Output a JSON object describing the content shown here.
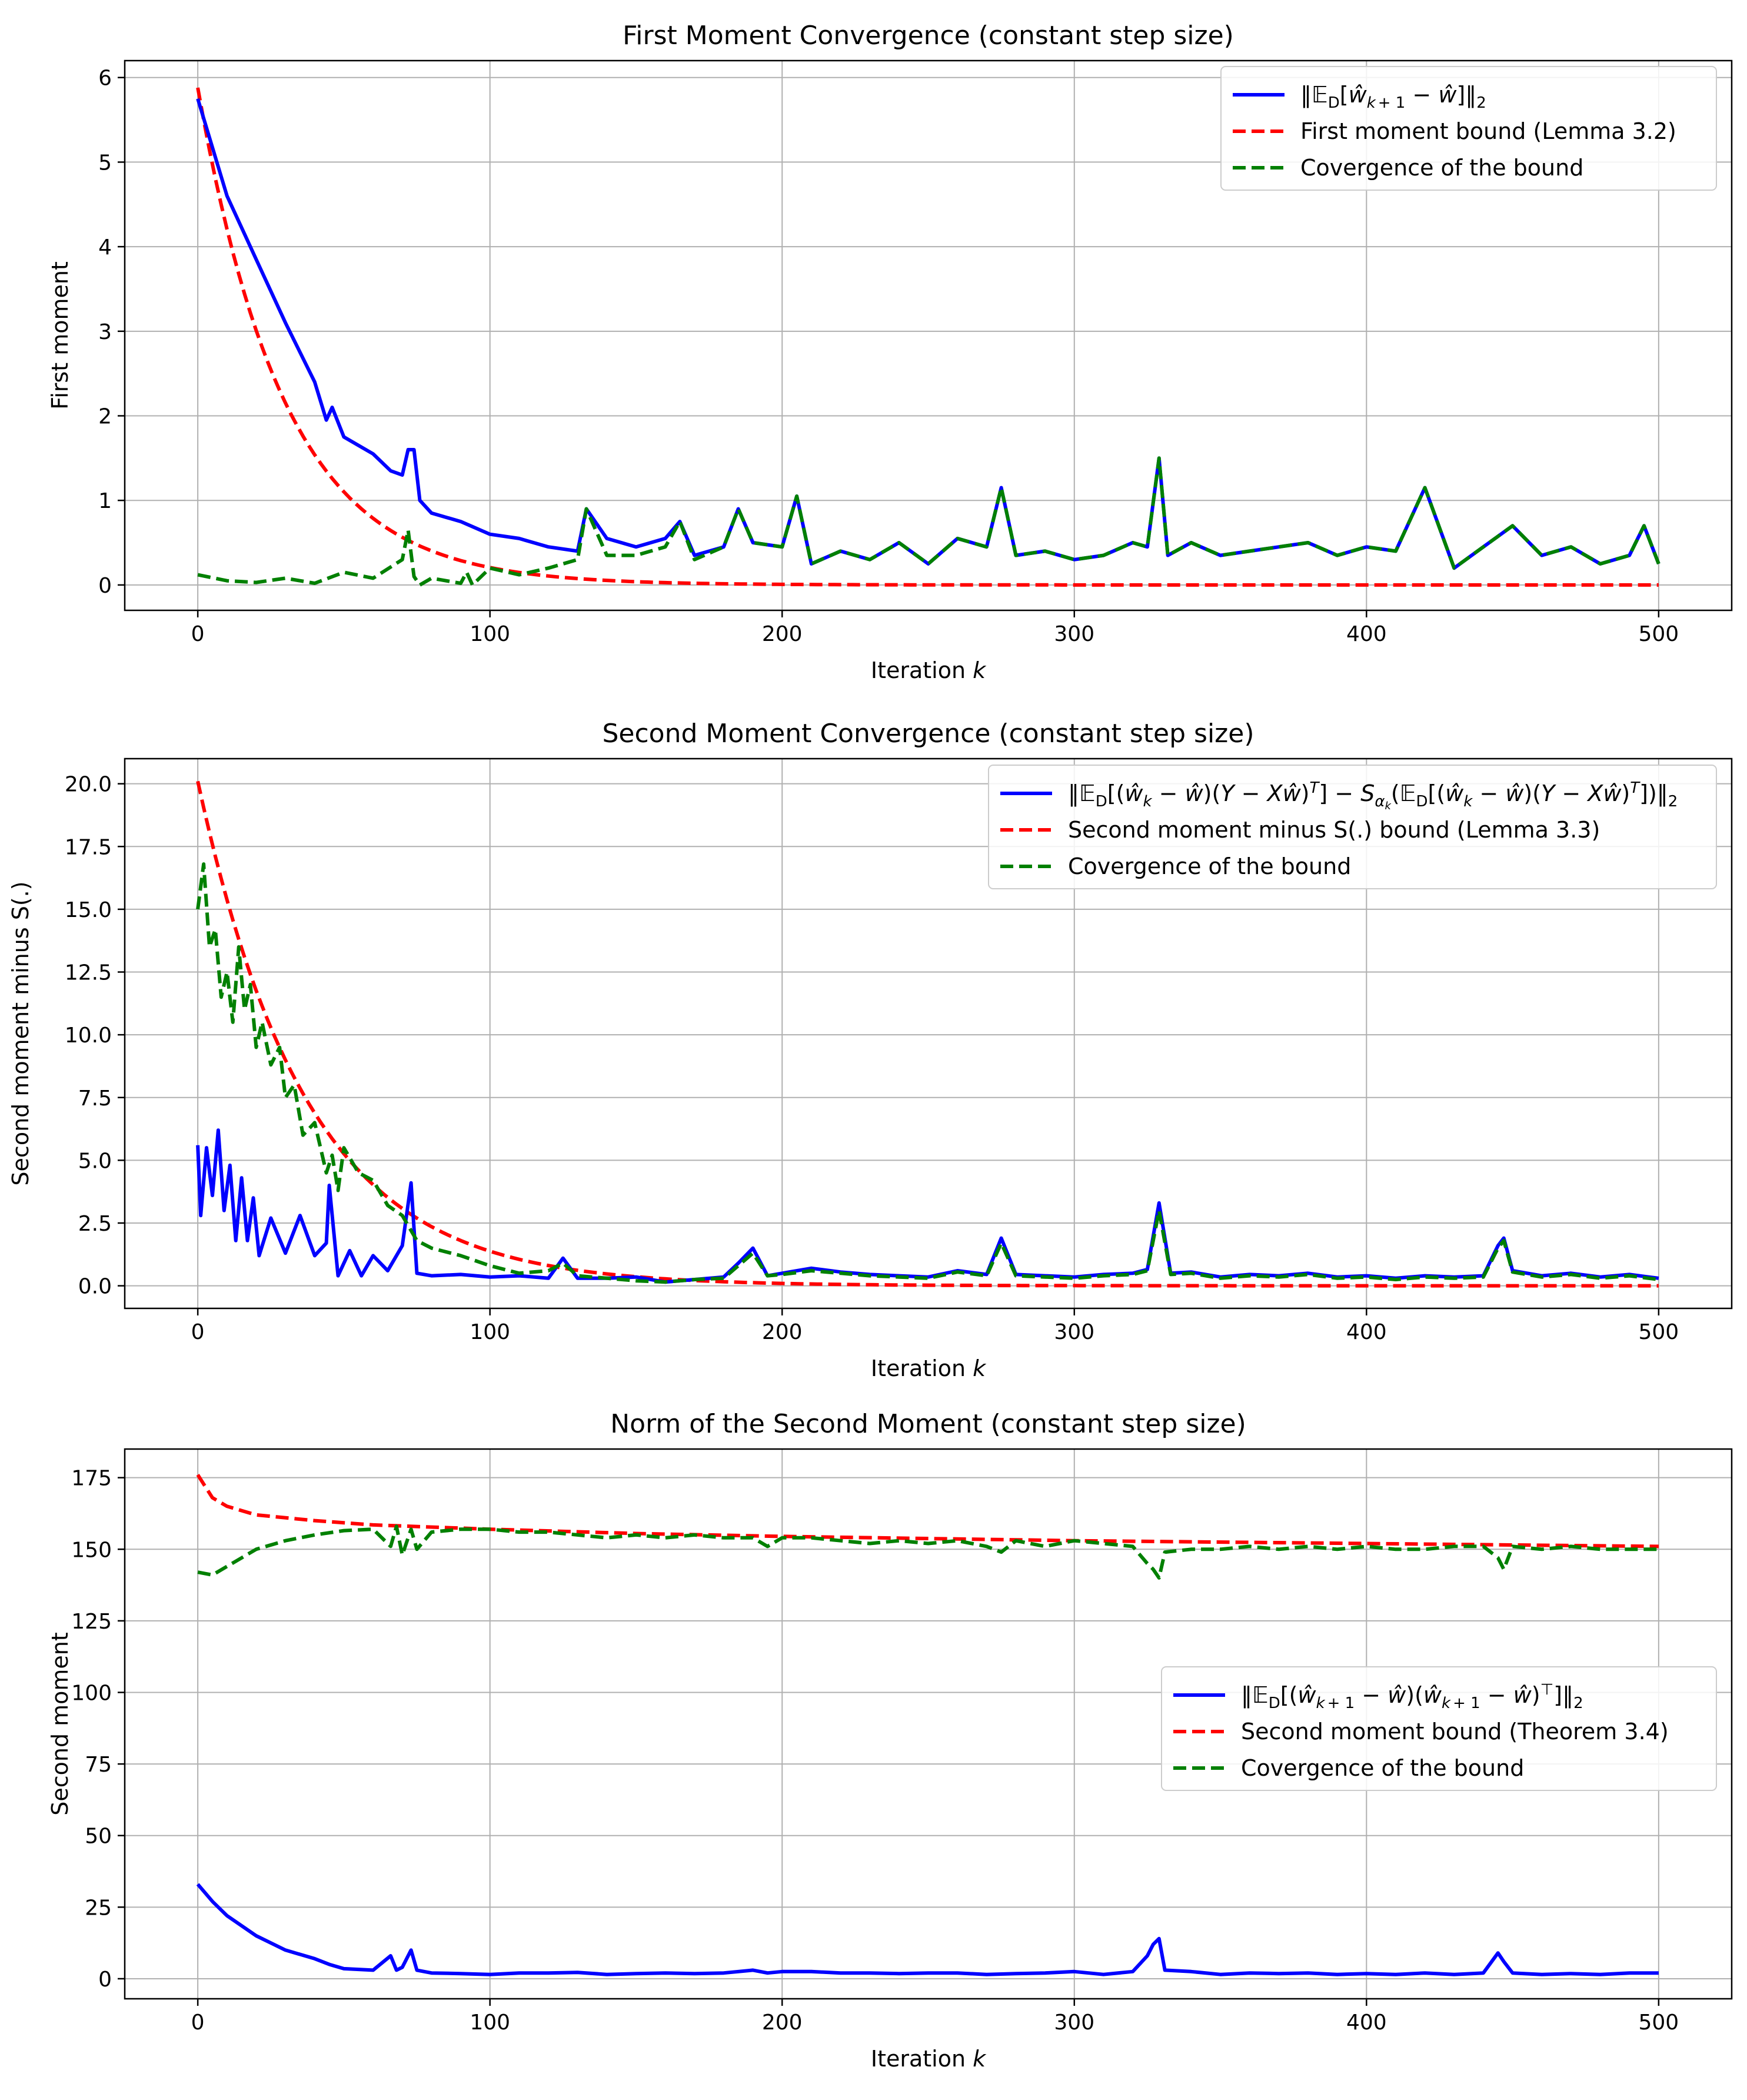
{
  "chart_data": [
    {
      "type": "line",
      "title": "First Moment Convergence (constant step size)",
      "xlabel": "Iteration k",
      "ylabel": "First moment",
      "xlim": [
        -25,
        525
      ],
      "ylim": [
        -0.3,
        6.2
      ],
      "xticks": [
        0,
        100,
        200,
        300,
        400,
        500
      ],
      "xtick_labels": [
        "0",
        "100",
        "200",
        "300",
        "400",
        "500"
      ],
      "yticks": [
        0,
        1,
        2,
        3,
        4,
        5,
        6
      ],
      "ytick_labels": [
        "0",
        "1",
        "2",
        "3",
        "4",
        "5",
        "6"
      ],
      "grid": true,
      "legend_position": "top-right",
      "series": [
        {
          "name": "‖𝔼D[ŵk+1 − ŵ]‖2",
          "color": "#0000ff",
          "style": "solid",
          "x": [
            0,
            10,
            20,
            30,
            40,
            44,
            46,
            50,
            60,
            66,
            70,
            72,
            74,
            76,
            80,
            90,
            100,
            110,
            120,
            130,
            133,
            140,
            150,
            160,
            165,
            170,
            180,
            185,
            190,
            200,
            205,
            210,
            220,
            230,
            240,
            250,
            260,
            270,
            275,
            280,
            290,
            300,
            310,
            320,
            325,
            329,
            332,
            340,
            350,
            360,
            370,
            380,
            390,
            400,
            410,
            420,
            430,
            440,
            450,
            460,
            470,
            480,
            490,
            495,
            500
          ],
          "values": [
            5.75,
            4.6,
            3.85,
            3.1,
            2.4,
            1.95,
            2.1,
            1.75,
            1.55,
            1.35,
            1.3,
            1.6,
            1.6,
            1.0,
            0.85,
            0.75,
            0.6,
            0.55,
            0.45,
            0.4,
            0.9,
            0.55,
            0.45,
            0.55,
            0.75,
            0.35,
            0.45,
            0.9,
            0.5,
            0.45,
            1.05,
            0.25,
            0.4,
            0.3,
            0.5,
            0.25,
            0.55,
            0.45,
            1.15,
            0.35,
            0.4,
            0.3,
            0.35,
            0.5,
            0.45,
            1.5,
            0.35,
            0.5,
            0.35,
            0.4,
            0.45,
            0.5,
            0.35,
            0.45,
            0.4,
            1.15,
            0.2,
            0.45,
            0.7,
            0.35,
            0.45,
            0.25,
            0.35,
            0.7,
            0.25
          ]
        },
        {
          "name": "First moment bound (Lemma 3.2)",
          "color": "#ff0000",
          "style": "dashed",
          "decay": {
            "y0": 5.88,
            "rate": 0.0335,
            "floor": 0.0
          }
        },
        {
          "name": "Covergence of the bound",
          "color": "#008000",
          "style": "dashed",
          "x": [
            0,
            10,
            20,
            30,
            40,
            50,
            60,
            70,
            72,
            74,
            76,
            80,
            90,
            92,
            94,
            100,
            110,
            120,
            130,
            133,
            140,
            150,
            160,
            165,
            170,
            180,
            185,
            190,
            200,
            205,
            210,
            220,
            230,
            240,
            250,
            260,
            270,
            275,
            280,
            290,
            300,
            310,
            320,
            325,
            329,
            332,
            340,
            350,
            360,
            370,
            380,
            390,
            400,
            410,
            420,
            430,
            440,
            450,
            460,
            470,
            480,
            490,
            495,
            500
          ],
          "values": [
            0.12,
            0.05,
            0.03,
            0.08,
            0.02,
            0.15,
            0.08,
            0.3,
            0.65,
            0.1,
            0.0,
            0.08,
            0.02,
            0.15,
            0.0,
            0.2,
            0.12,
            0.2,
            0.3,
            0.9,
            0.35,
            0.35,
            0.45,
            0.75,
            0.3,
            0.45,
            0.9,
            0.5,
            0.45,
            1.05,
            0.25,
            0.4,
            0.3,
            0.5,
            0.25,
            0.55,
            0.45,
            1.15,
            0.35,
            0.4,
            0.3,
            0.35,
            0.5,
            0.45,
            1.5,
            0.35,
            0.5,
            0.35,
            0.4,
            0.45,
            0.5,
            0.35,
            0.45,
            0.4,
            1.15,
            0.2,
            0.45,
            0.7,
            0.35,
            0.45,
            0.25,
            0.35,
            0.7,
            0.25
          ]
        }
      ]
    },
    {
      "type": "line",
      "title": "Second Moment Convergence (constant step size)",
      "xlabel": "Iteration k",
      "ylabel": "Second moment minus S(.)",
      "xlim": [
        -25,
        525
      ],
      "ylim": [
        -0.9,
        21.0
      ],
      "xticks": [
        0,
        100,
        200,
        300,
        400,
        500
      ],
      "xtick_labels": [
        "0",
        "100",
        "200",
        "300",
        "400",
        "500"
      ],
      "yticks": [
        0,
        2.5,
        5,
        7.5,
        10,
        12.5,
        15,
        17.5,
        20
      ],
      "ytick_labels": [
        "0.0",
        "2.5",
        "5.0",
        "7.5",
        "10.0",
        "12.5",
        "15.0",
        "17.5",
        "20.0"
      ],
      "grid": true,
      "legend_position": "top-right",
      "series": [
        {
          "name": "‖𝔼D[(ŵk − ŵ)(Y − Xŵ)T] − Sαk(𝔼D[(ŵk − ŵ)(Y − Xŵ)T])‖2",
          "color": "#0000ff",
          "style": "solid",
          "x": [
            0,
            1,
            3,
            5,
            7,
            9,
            11,
            13,
            15,
            17,
            19,
            21,
            25,
            30,
            35,
            40,
            44,
            45,
            48,
            52,
            56,
            60,
            65,
            70,
            73,
            75,
            80,
            90,
            100,
            110,
            120,
            125,
            130,
            140,
            150,
            160,
            170,
            180,
            185,
            190,
            195,
            200,
            210,
            220,
            230,
            240,
            250,
            260,
            270,
            275,
            280,
            290,
            300,
            310,
            320,
            325,
            329,
            333,
            340,
            350,
            360,
            370,
            380,
            390,
            400,
            410,
            420,
            430,
            440,
            445,
            447,
            450,
            460,
            470,
            480,
            490,
            500
          ],
          "values": [
            5.6,
            2.8,
            5.5,
            3.6,
            6.2,
            3.0,
            4.8,
            1.8,
            4.3,
            1.8,
            3.5,
            1.2,
            2.7,
            1.3,
            2.8,
            1.2,
            1.7,
            4.0,
            0.4,
            1.4,
            0.4,
            1.2,
            0.6,
            1.6,
            4.1,
            0.5,
            0.4,
            0.45,
            0.35,
            0.4,
            0.3,
            1.1,
            0.3,
            0.3,
            0.35,
            0.15,
            0.25,
            0.35,
            0.9,
            1.5,
            0.4,
            0.5,
            0.7,
            0.55,
            0.45,
            0.4,
            0.35,
            0.6,
            0.45,
            1.9,
            0.45,
            0.4,
            0.35,
            0.45,
            0.5,
            0.65,
            3.3,
            0.5,
            0.55,
            0.35,
            0.45,
            0.4,
            0.5,
            0.35,
            0.4,
            0.3,
            0.4,
            0.35,
            0.4,
            1.6,
            1.9,
            0.6,
            0.4,
            0.5,
            0.35,
            0.45,
            0.3
          ]
        },
        {
          "name": "Second moment minus S(.) bound (Lemma 3.3)",
          "color": "#ff0000",
          "style": "dashed",
          "decay": {
            "y0": 20.1,
            "rate": 0.0268,
            "floor": 0.0
          }
        },
        {
          "name": "Covergence of the bound",
          "color": "#008000",
          "style": "dashed",
          "x": [
            0,
            2,
            4,
            6,
            8,
            10,
            12,
            14,
            16,
            18,
            20,
            22,
            25,
            28,
            30,
            33,
            36,
            40,
            44,
            46,
            48,
            50,
            55,
            60,
            65,
            70,
            75,
            80,
            90,
            100,
            110,
            120,
            125,
            130,
            140,
            150,
            160,
            170,
            180,
            185,
            190,
            195,
            200,
            210,
            220,
            230,
            240,
            250,
            260,
            270,
            275,
            280,
            290,
            300,
            310,
            320,
            325,
            329,
            333,
            340,
            350,
            360,
            370,
            380,
            390,
            400,
            410,
            420,
            430,
            440,
            445,
            447,
            450,
            460,
            470,
            480,
            490,
            500
          ],
          "values": [
            15.0,
            16.8,
            13.5,
            14.2,
            11.5,
            12.5,
            10.5,
            13.5,
            11.0,
            12.0,
            9.5,
            10.5,
            8.8,
            9.5,
            7.5,
            8.0,
            6.0,
            6.5,
            4.5,
            5.2,
            3.8,
            5.5,
            4.5,
            4.2,
            3.2,
            2.8,
            1.8,
            1.5,
            1.2,
            0.8,
            0.5,
            0.6,
            0.9,
            0.4,
            0.3,
            0.2,
            0.15,
            0.25,
            0.3,
            0.8,
            1.3,
            0.4,
            0.45,
            0.6,
            0.5,
            0.4,
            0.35,
            0.3,
            0.55,
            0.4,
            1.7,
            0.4,
            0.35,
            0.3,
            0.4,
            0.45,
            0.6,
            3.0,
            0.45,
            0.5,
            0.3,
            0.4,
            0.35,
            0.45,
            0.3,
            0.35,
            0.25,
            0.35,
            0.3,
            0.35,
            1.5,
            1.8,
            0.55,
            0.35,
            0.45,
            0.3,
            0.4,
            0.25
          ]
        }
      ]
    },
    {
      "type": "line",
      "title": "Norm of the Second Moment (constant step size)",
      "xlabel": "Iteration k",
      "ylabel": "Second moment",
      "xlim": [
        -25,
        525
      ],
      "ylim": [
        -7,
        185
      ],
      "xticks": [
        0,
        100,
        200,
        300,
        400,
        500
      ],
      "xtick_labels": [
        "0",
        "100",
        "200",
        "300",
        "400",
        "500"
      ],
      "yticks": [
        0,
        25,
        50,
        75,
        100,
        125,
        150,
        175
      ],
      "ytick_labels": [
        "0",
        "25",
        "50",
        "75",
        "100",
        "125",
        "150",
        "175"
      ],
      "grid": true,
      "legend_position": "center-right",
      "series": [
        {
          "name": "‖𝔼D[(ŵk+1 − ŵ)(ŵk+1 − ŵ)⊤]‖2",
          "color": "#0000ff",
          "style": "solid",
          "x": [
            0,
            5,
            10,
            20,
            30,
            40,
            45,
            50,
            60,
            66,
            68,
            70,
            73,
            75,
            80,
            90,
            100,
            110,
            120,
            130,
            140,
            150,
            160,
            170,
            180,
            190,
            195,
            200,
            210,
            220,
            230,
            240,
            250,
            260,
            270,
            280,
            290,
            300,
            310,
            320,
            325,
            327,
            329,
            331,
            340,
            350,
            360,
            370,
            380,
            390,
            400,
            410,
            420,
            430,
            440,
            445,
            447,
            450,
            460,
            470,
            480,
            490,
            500
          ],
          "values": [
            33,
            27,
            22,
            15,
            10,
            7,
            5,
            3.5,
            3,
            8,
            3,
            4,
            10,
            3,
            2,
            1.8,
            1.5,
            2,
            2,
            2.2,
            1.5,
            1.8,
            2,
            1.8,
            2,
            3,
            2,
            2.5,
            2.5,
            2,
            2,
            1.8,
            2,
            2,
            1.5,
            1.8,
            2,
            2.5,
            1.5,
            2.5,
            8,
            12,
            14,
            3,
            2.5,
            1.5,
            2,
            1.8,
            2,
            1.5,
            1.8,
            1.5,
            2,
            1.5,
            2,
            9,
            6,
            2,
            1.5,
            1.8,
            1.5,
            2,
            2
          ]
        },
        {
          "name": "Second moment bound (Theorem 3.4)",
          "color": "#ff0000",
          "style": "dashed",
          "x": [
            0,
            5,
            10,
            20,
            40,
            60,
            100,
            150,
            200,
            300,
            400,
            500
          ],
          "values": [
            176,
            168,
            165,
            162,
            160,
            158.5,
            157,
            155.5,
            154.5,
            153,
            152,
            151
          ]
        },
        {
          "name": "Covergence of the bound",
          "color": "#008000",
          "style": "dashed",
          "x": [
            0,
            5,
            10,
            20,
            30,
            40,
            50,
            60,
            66,
            68,
            70,
            73,
            75,
            80,
            90,
            100,
            110,
            120,
            130,
            140,
            150,
            160,
            170,
            180,
            190,
            195,
            200,
            210,
            220,
            230,
            240,
            250,
            260,
            270,
            275,
            280,
            290,
            300,
            310,
            320,
            325,
            327,
            329,
            331,
            340,
            350,
            360,
            370,
            380,
            390,
            400,
            410,
            420,
            430,
            440,
            445,
            447,
            450,
            460,
            470,
            480,
            490,
            500
          ],
          "values": [
            142,
            141,
            144,
            150,
            153,
            155,
            156.5,
            157,
            151,
            158,
            148,
            157,
            150,
            156,
            157,
            157,
            156,
            156,
            155,
            154,
            155,
            154,
            155,
            154,
            154,
            151,
            154,
            154,
            153,
            152,
            153,
            152,
            153,
            151,
            149,
            153,
            151,
            153,
            152,
            151,
            145,
            143,
            140,
            149,
            150,
            150,
            151,
            150,
            151,
            150,
            151,
            150,
            150,
            151,
            151,
            147,
            143,
            151,
            150,
            151,
            150,
            150,
            150
          ]
        }
      ]
    }
  ]
}
